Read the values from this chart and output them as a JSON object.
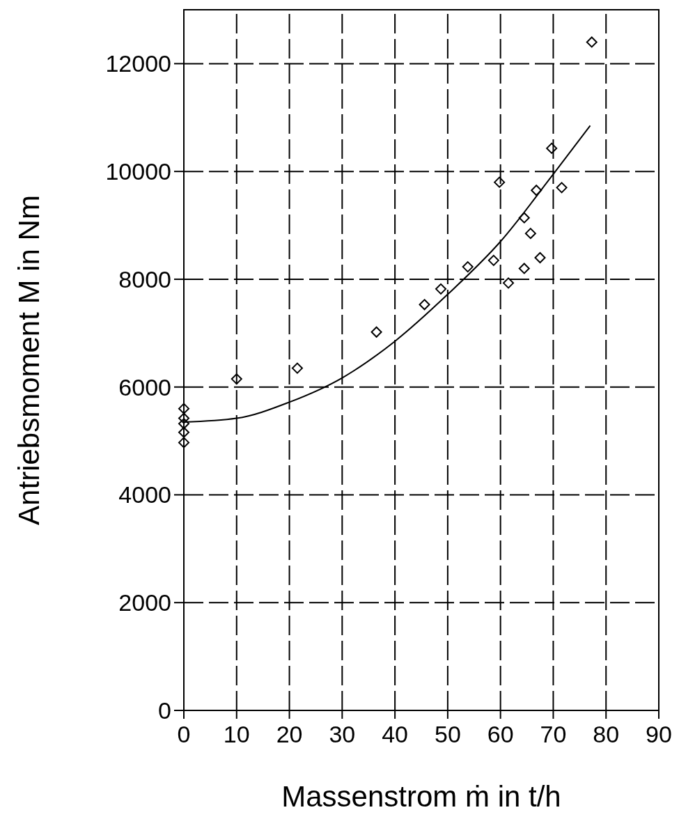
{
  "chart_data": {
    "type": "scatter",
    "xlabel": "Massenstrom ṁ in t/h",
    "ylabel": "Antriebsmoment M in Nm",
    "xlim": [
      0,
      90
    ],
    "xticks": [
      0,
      10,
      20,
      30,
      40,
      50,
      60,
      70,
      80,
      90
    ],
    "ylim": [
      0,
      13000
    ],
    "yticks": [
      0,
      2000,
      4000,
      6000,
      8000,
      10000,
      12000
    ],
    "grid": true,
    "marker": "diamond",
    "series": [
      {
        "color": "#000000",
        "x": [
          0,
          0,
          0,
          0,
          0,
          10,
          21.5,
          36.5,
          45.6,
          48.7,
          53.8,
          58.7,
          59.8,
          61.5,
          64.5,
          64.5,
          65.7,
          66.8,
          67.5,
          69.7,
          71.6,
          77.3
        ],
        "values": [
          5600,
          5420,
          5320,
          5160,
          4970,
          6150,
          6350,
          7020,
          7530,
          7820,
          8230,
          8350,
          9800,
          7930,
          8200,
          9140,
          8850,
          9650,
          8400,
          10430,
          9700,
          12400
        ]
      },
      {
        "type": "line",
        "color": "#000000",
        "marker": "none",
        "line_style": "solid",
        "x": [
          0,
          10,
          20,
          30,
          40,
          50,
          60,
          70,
          77
        ],
        "values": [
          5350,
          5420,
          5720,
          6170,
          6850,
          7720,
          8700,
          9950,
          10850
        ]
      }
    ]
  }
}
